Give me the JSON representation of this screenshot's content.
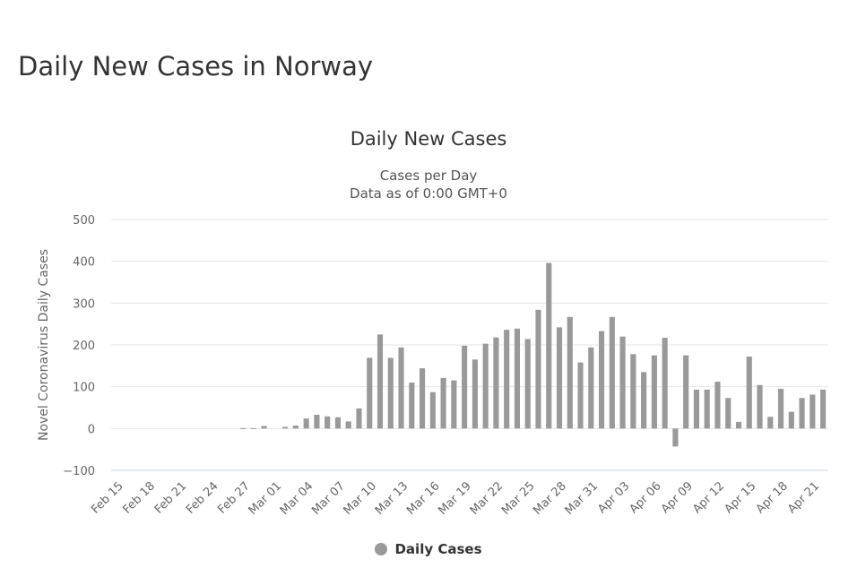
{
  "page": {
    "title": "Daily New Cases in Norway"
  },
  "chart_data": {
    "type": "bar",
    "title": "Daily New Cases",
    "subtitle": [
      "Cases per Day",
      "Data as of 0:00 GMT+0"
    ],
    "ylabel": "Novel Coronavirus Daily Cases",
    "xlabel": "",
    "ylim": [
      -100,
      500
    ],
    "yticks": [
      -100,
      0,
      100,
      200,
      300,
      400,
      500
    ],
    "grid": true,
    "legend": "bottom-center",
    "series_color": "#999999",
    "series": [
      {
        "name": "Daily Cases",
        "values": [
          0,
          0,
          0,
          0,
          0,
          0,
          0,
          0,
          0,
          0,
          0,
          0,
          1,
          1,
          6,
          0,
          4,
          7,
          24,
          33,
          29,
          27,
          17,
          48,
          169,
          225,
          169,
          194,
          110,
          144,
          87,
          121,
          115,
          198,
          165,
          203,
          218,
          236,
          239,
          214,
          284,
          396,
          242,
          267,
          158,
          194,
          233,
          267,
          220,
          178,
          135,
          175,
          217,
          -43,
          175,
          93,
          93,
          112,
          73,
          16,
          172,
          104,
          28,
          95,
          40,
          73,
          81,
          93
        ]
      }
    ],
    "categories": [
      "Feb 15",
      "Feb 16",
      "Feb 17",
      "Feb 18",
      "Feb 19",
      "Feb 20",
      "Feb 21",
      "Feb 22",
      "Feb 23",
      "Feb 24",
      "Feb 25",
      "Feb 26",
      "Feb 27",
      "Feb 28",
      "Feb 29",
      "Mar 01",
      "Mar 02",
      "Mar 03",
      "Mar 04",
      "Mar 05",
      "Mar 06",
      "Mar 07",
      "Mar 08",
      "Mar 09",
      "Mar 10",
      "Mar 11",
      "Mar 12",
      "Mar 13",
      "Mar 14",
      "Mar 15",
      "Mar 16",
      "Mar 17",
      "Mar 18",
      "Mar 19",
      "Mar 20",
      "Mar 21",
      "Mar 22",
      "Mar 23",
      "Mar 24",
      "Mar 25",
      "Mar 26",
      "Mar 27",
      "Mar 28",
      "Mar 29",
      "Mar 30",
      "Mar 31",
      "Apr 01",
      "Apr 02",
      "Apr 03",
      "Apr 04",
      "Apr 05",
      "Apr 06",
      "Apr 07",
      "Apr 08",
      "Apr 09",
      "Apr 10",
      "Apr 11",
      "Apr 12",
      "Apr 13",
      "Apr 14",
      "Apr 15",
      "Apr 16",
      "Apr 17",
      "Apr 18",
      "Apr 19",
      "Apr 20",
      "Apr 21",
      "Apr 22"
    ],
    "xtick_labels": [
      "Feb 15",
      "Feb 18",
      "Feb 21",
      "Feb 24",
      "Feb 27",
      "Mar 01",
      "Mar 04",
      "Mar 07",
      "Mar 10",
      "Mar 13",
      "Mar 16",
      "Mar 19",
      "Mar 22",
      "Mar 25",
      "Mar 28",
      "Mar 31",
      "Apr 03",
      "Apr 06",
      "Apr 09",
      "Apr 12",
      "Apr 15",
      "Apr 18",
      "Apr 21"
    ]
  }
}
